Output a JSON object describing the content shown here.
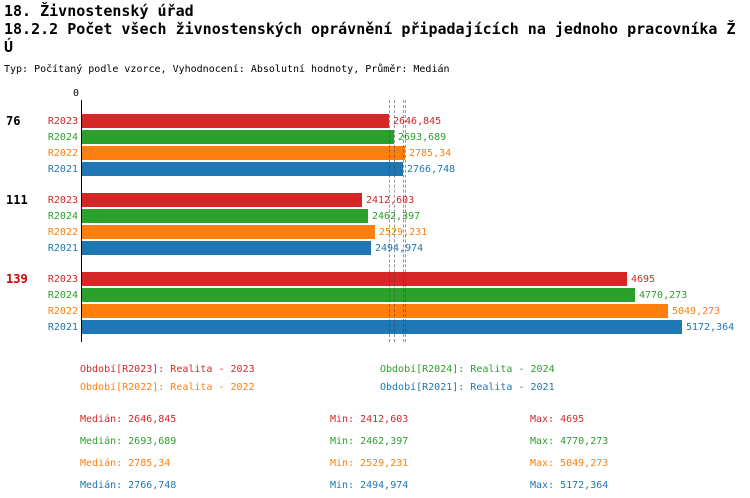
{
  "header": {
    "title": "18. Živnostenský úřad",
    "subtitle": "18.2.2 Počet všech živnostenských oprávnění připadajících na jednoho pracovníka Ž",
    "subtitle_wrap": "Ú",
    "meta": "Typ: Počítaný podle vzorce, Vyhodnocení: Absolutní hodnoty, Průměr: Medián"
  },
  "chart_data": {
    "type": "bar",
    "orientation": "horizontal",
    "origin_label": "0",
    "xlim": [
      0,
      5172.364
    ],
    "categories": [
      "76",
      "111",
      "139"
    ],
    "series": [
      {
        "name": "R2023",
        "color": "#d62728",
        "values": [
          2646.845,
          2412.603,
          4695
        ]
      },
      {
        "name": "R2024",
        "color": "#2ca02c",
        "values": [
          2693.689,
          2462.397,
          4770.273
        ]
      },
      {
        "name": "R2022",
        "color": "#ff7f0e",
        "values": [
          2785.34,
          2529.231,
          5049.273
        ]
      },
      {
        "name": "R2021",
        "color": "#1f77b4",
        "values": [
          2766.748,
          2494.974,
          5172.364
        ]
      }
    ],
    "groups": [
      {
        "id": "76",
        "id_color": "#000000",
        "bars": [
          {
            "series": "R2023",
            "value": 2646.845,
            "label": "2646,845",
            "color": "#d62728"
          },
          {
            "series": "R2024",
            "value": 2693.689,
            "label": "2693,689",
            "color": "#2ca02c"
          },
          {
            "series": "R2022",
            "value": 2785.34,
            "label": "2785,34",
            "color": "#ff7f0e"
          },
          {
            "series": "R2021",
            "value": 2766.748,
            "label": "2766,748",
            "color": "#1f77b4"
          }
        ]
      },
      {
        "id": "111",
        "id_color": "#000000",
        "bars": [
          {
            "series": "R2023",
            "value": 2412.603,
            "label": "2412,603",
            "color": "#d62728"
          },
          {
            "series": "R2024",
            "value": 2462.397,
            "label": "2462,397",
            "color": "#2ca02c"
          },
          {
            "series": "R2022",
            "value": 2529.231,
            "label": "2529,231",
            "color": "#ff7f0e"
          },
          {
            "series": "R2021",
            "value": 2494.974,
            "label": "2494,974",
            "color": "#1f77b4"
          }
        ]
      },
      {
        "id": "139",
        "id_color": "#cc0000",
        "bars": [
          {
            "series": "R2023",
            "value": 4695,
            "label": "4695",
            "color": "#d62728"
          },
          {
            "series": "R2024",
            "value": 4770.273,
            "label": "4770,273",
            "color": "#2ca02c"
          },
          {
            "series": "R2022",
            "value": 5049.273,
            "label": "5049,273",
            "color": "#ff7f0e"
          },
          {
            "series": "R2021",
            "value": 5172.364,
            "label": "5172,364",
            "color": "#1f77b4"
          }
        ]
      }
    ],
    "median_lines": [
      {
        "series": "R2023",
        "value": 2646.845
      },
      {
        "series": "R2024",
        "value": 2693.689
      },
      {
        "series": "R2022",
        "value": 2785.34
      },
      {
        "series": "R2021",
        "value": 2766.748
      }
    ]
  },
  "legend": {
    "items": [
      {
        "label": "Období[R2023]: Realita - 2023",
        "color": "#d62728"
      },
      {
        "label": "Období[R2024]: Realita - 2024",
        "color": "#2ca02c"
      },
      {
        "label": "Období[R2022]: Realita - 2022",
        "color": "#ff7f0e"
      },
      {
        "label": "Období[R2021]: Realita - 2021",
        "color": "#1f77b4"
      }
    ]
  },
  "stats": {
    "rows": [
      {
        "color": "#d62728",
        "median": "Medián: 2646,845",
        "min": "Min: 2412,603",
        "max": "Max: 4695"
      },
      {
        "color": "#2ca02c",
        "median": "Medián: 2693,689",
        "min": "Min: 2462,397",
        "max": "Max: 4770,273"
      },
      {
        "color": "#ff7f0e",
        "median": "Medián: 2785,34",
        "min": "Min: 2529,231",
        "max": "Max: 5049,273"
      },
      {
        "color": "#1f77b4",
        "median": "Medián: 2766,748",
        "min": "Min: 2494,974",
        "max": "Max: 5172,364"
      }
    ]
  }
}
